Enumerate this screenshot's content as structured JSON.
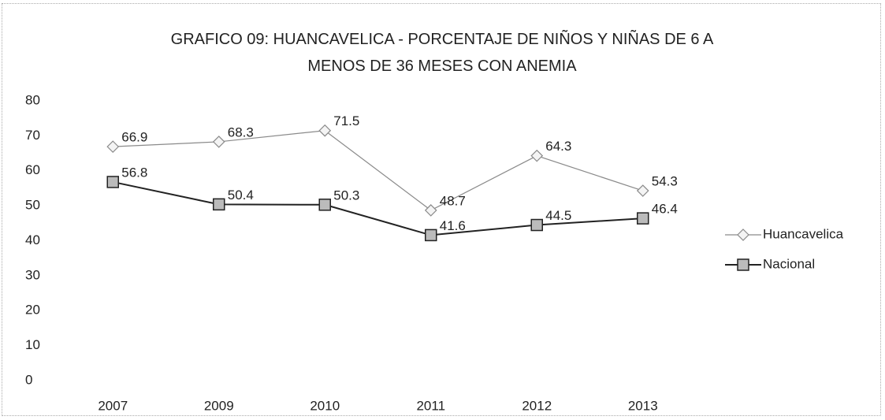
{
  "chart_data": {
    "type": "line",
    "title": "GRAFICO 09: HUANCAVELICA - PORCENTAJE DE NIÑOS Y NIÑAS DE 6 A MENOS DE 36 MESES CON ANEMIA",
    "categories": [
      "2007",
      "2009",
      "2010",
      "2011",
      "2012",
      "2013"
    ],
    "series": [
      {
        "name": "Huancavelica",
        "color": "#8a8a8a",
        "values": [
          66.9,
          68.3,
          71.5,
          48.7,
          64.3,
          54.3
        ]
      },
      {
        "name": "Nacional",
        "color": "#222222",
        "values": [
          56.8,
          50.4,
          50.3,
          41.6,
          44.5,
          46.4
        ]
      }
    ],
    "ylim": [
      0,
      80
    ],
    "yticks": [
      0,
      10,
      20,
      30,
      40,
      50,
      60,
      70,
      80
    ],
    "grid": false,
    "legend": "right"
  }
}
